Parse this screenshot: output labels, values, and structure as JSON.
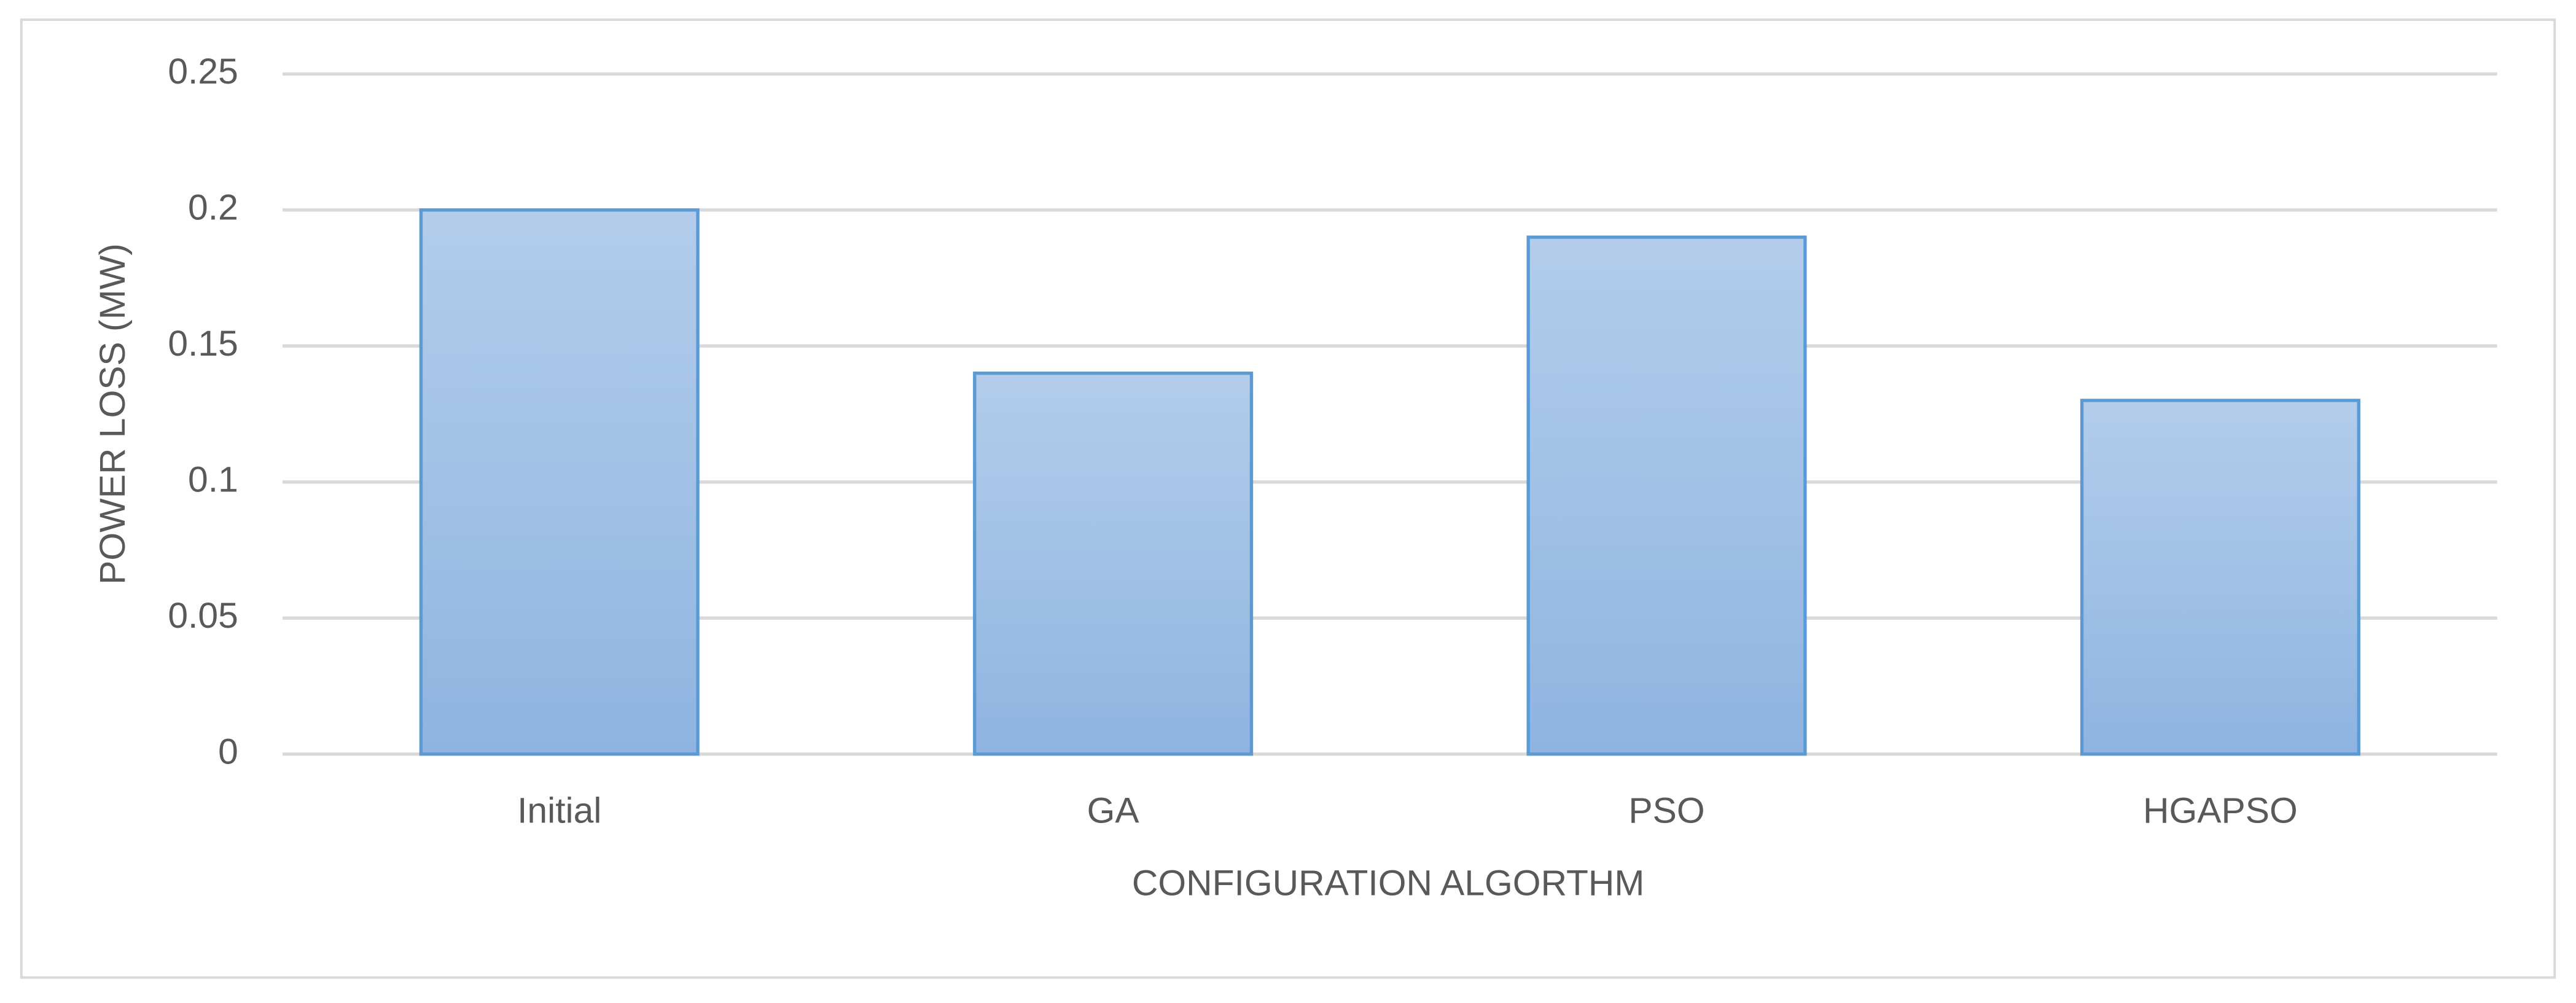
{
  "chart_data": {
    "type": "bar",
    "x_label": "CONFIGURATION ALGORTHM",
    "y_label": "POWER LOSS (MW)",
    "categories": [
      "Initial",
      "GA",
      "PSO",
      "HGAPSO"
    ],
    "values": [
      0.2,
      0.14,
      0.19,
      0.13
    ],
    "color": "#5b9bd5",
    "ylim": [
      0,
      0.25
    ],
    "yticks": [
      0,
      0.05,
      0.1,
      0.15,
      0.2,
      0.25
    ],
    "grid": true
  }
}
